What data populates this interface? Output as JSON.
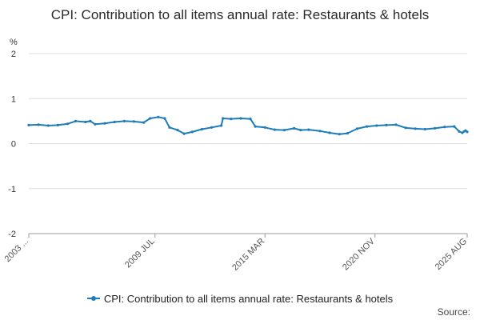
{
  "chart_data": {
    "type": "line",
    "title": "CPI: Contribution to all items annual rate: Restaurants & hotels",
    "ylabel": "%",
    "xlabel": "",
    "ylim": [
      -2,
      2
    ],
    "yticks": [
      "2",
      "1",
      "0",
      "-1",
      "-2"
    ],
    "xticks": [
      {
        "label": "2003 ...",
        "x": "2003-01"
      },
      {
        "label": "2009 JUL",
        "x": "2009-07"
      },
      {
        "label": "2015 MAR",
        "x": "2015-03"
      },
      {
        "label": "2020 NOV",
        "x": "2020-11"
      },
      {
        "label": "2025 AUG",
        "x": "2025-08"
      }
    ],
    "grid": true,
    "legend_position": "bottom",
    "series": [
      {
        "name": "CPI: Contribution to all items annual rate: Restaurants & hotels",
        "color": "#1f7cb8",
        "points": [
          [
            "2003-01",
            0.41
          ],
          [
            "2003-07",
            0.42
          ],
          [
            "2004-01",
            0.4
          ],
          [
            "2004-07",
            0.41
          ],
          [
            "2005-01",
            0.44
          ],
          [
            "2005-06",
            0.5
          ],
          [
            "2005-12",
            0.48
          ],
          [
            "2006-03",
            0.5
          ],
          [
            "2006-06",
            0.43
          ],
          [
            "2006-12",
            0.45
          ],
          [
            "2007-06",
            0.48
          ],
          [
            "2007-12",
            0.5
          ],
          [
            "2008-06",
            0.49
          ],
          [
            "2008-12",
            0.47
          ],
          [
            "2009-04",
            0.56
          ],
          [
            "2009-09",
            0.59
          ],
          [
            "2010-01",
            0.56
          ],
          [
            "2010-04",
            0.36
          ],
          [
            "2010-09",
            0.3
          ],
          [
            "2011-01",
            0.22
          ],
          [
            "2011-06",
            0.26
          ],
          [
            "2011-12",
            0.32
          ],
          [
            "2012-06",
            0.36
          ],
          [
            "2012-12",
            0.4
          ],
          [
            "2013-01",
            0.56
          ],
          [
            "2013-06",
            0.55
          ],
          [
            "2013-12",
            0.56
          ],
          [
            "2014-06",
            0.55
          ],
          [
            "2014-09",
            0.38
          ],
          [
            "2015-03",
            0.36
          ],
          [
            "2015-09",
            0.31
          ],
          [
            "2016-03",
            0.3
          ],
          [
            "2016-09",
            0.34
          ],
          [
            "2017-01",
            0.3
          ],
          [
            "2017-06",
            0.31
          ],
          [
            "2018-01",
            0.28
          ],
          [
            "2018-07",
            0.24
          ],
          [
            "2019-01",
            0.21
          ],
          [
            "2019-06",
            0.23
          ],
          [
            "2019-12",
            0.33
          ],
          [
            "2020-06",
            0.38
          ],
          [
            "2020-12",
            0.4
          ],
          [
            "2021-06",
            0.41
          ],
          [
            "2021-12",
            0.42
          ],
          [
            "2022-06",
            0.35
          ],
          [
            "2022-12",
            0.33
          ],
          [
            "2023-06",
            0.32
          ],
          [
            "2023-12",
            0.34
          ],
          [
            "2024-06",
            0.37
          ],
          [
            "2024-12",
            0.38
          ],
          [
            "2025-03",
            0.27
          ],
          [
            "2025-05",
            0.24
          ],
          [
            "2025-06",
            0.27
          ],
          [
            "2025-07",
            0.29
          ],
          [
            "2025-08",
            0.26
          ]
        ]
      }
    ]
  },
  "legend": {
    "label": "CPI: Contribution to all items annual rate: Restaurants & hotels"
  },
  "source": {
    "label": "Source:"
  }
}
